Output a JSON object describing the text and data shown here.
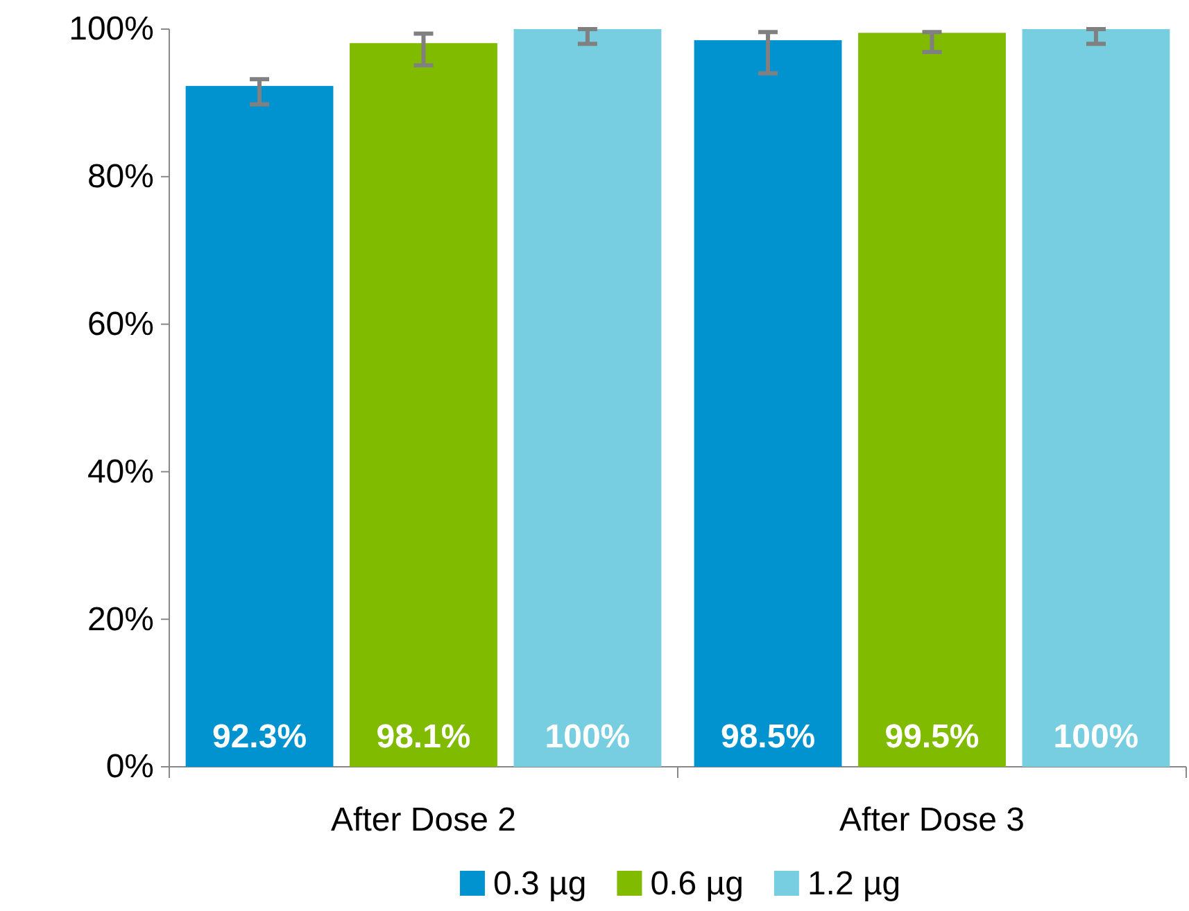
{
  "chart_data": {
    "type": "bar",
    "categories": [
      "After Dose 2",
      "After Dose 3"
    ],
    "series": [
      {
        "name": "0.3 µg",
        "color": "#0093d0",
        "values": [
          92.3,
          98.5
        ],
        "errors": [
          [
            89.8,
            93.2
          ],
          [
            94.0,
            99.6
          ]
        ]
      },
      {
        "name": "0.6 µg",
        "color": "#80bb00",
        "values": [
          98.1,
          99.5
        ],
        "errors": [
          [
            95.1,
            99.4
          ],
          [
            96.9,
            99.6
          ]
        ]
      },
      {
        "name": "1.2 µg",
        "color": "#76cee0",
        "values": [
          100,
          100
        ],
        "errors": [
          [
            98.0,
            100
          ],
          [
            98.0,
            100
          ]
        ]
      }
    ],
    "ylim": [
      0,
      100
    ],
    "yticks": [
      {
        "value": 0,
        "label": "0%"
      },
      {
        "value": 20,
        "label": "20%"
      },
      {
        "value": 40,
        "label": "40%"
      },
      {
        "value": 60,
        "label": "60%"
      },
      {
        "value": 80,
        "label": "80%"
      },
      {
        "value": 100,
        "label": "100%"
      }
    ],
    "value_labels": [
      [
        "92.3%",
        "98.5%"
      ],
      [
        "98.1%",
        "99.5%"
      ],
      [
        "100%",
        "100%"
      ]
    ],
    "grid": false,
    "legend": "bottom"
  }
}
